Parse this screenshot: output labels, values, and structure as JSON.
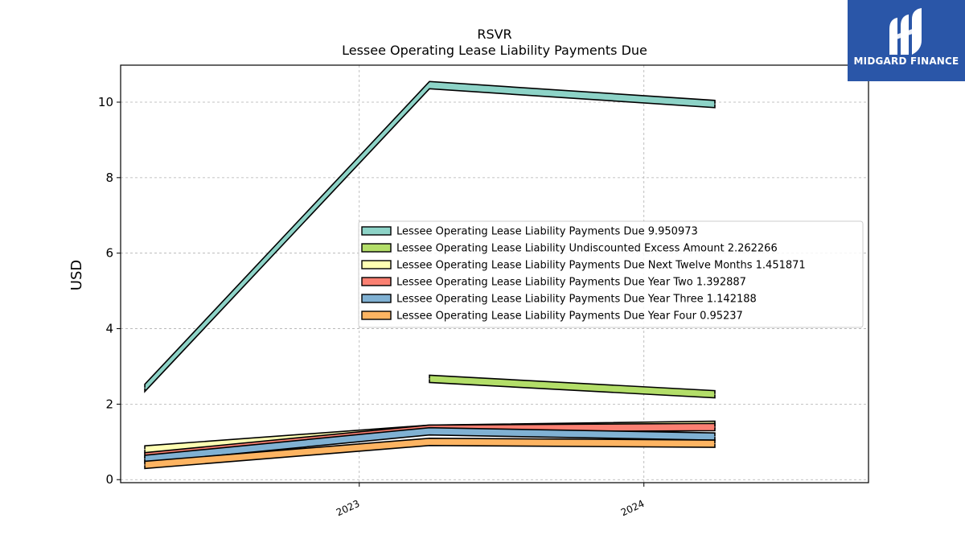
{
  "brand": {
    "name": "MIDGARD FINANCE",
    "bg_color": "#2a56a8",
    "icon": "midgard-logo-icon"
  },
  "chart_data": {
    "type": "area",
    "title": "RSVR",
    "subtitle": "Lessee Operating Lease Liability Payments Due",
    "xlabel": "",
    "ylabel": "USD",
    "ylim": [
      -0.08,
      10.98
    ],
    "yticks": [
      0,
      2,
      4,
      6,
      8,
      10
    ],
    "xlim": [
      "2022-03-01",
      "2024-10-15"
    ],
    "xticks": [
      "2023",
      "2024"
    ],
    "grid": true,
    "legend_position": "center-right",
    "series": [
      {
        "name": "Lessee Operating Lease Liability Payments Due",
        "legend_label": "Lessee Operating Lease Liability Payments Due  9.950973",
        "color": "#8dd3c7",
        "points": [
          [
            "2022-04-01",
            2.43
          ],
          [
            "2023-04-01",
            10.45
          ],
          [
            "2024-04-01",
            9.950973
          ]
        ]
      },
      {
        "name": "Lessee Operating Lease Liability Undiscounted Excess Amount",
        "legend_label": "Lessee Operating Lease Liability Undiscounted Excess Amount  2.262266",
        "color": "#b3de69",
        "points": [
          [
            "2023-04-01",
            2.67
          ],
          [
            "2024-04-01",
            2.262266
          ]
        ]
      },
      {
        "name": "Lessee Operating Lease Liability Payments Due Next Twelve Months",
        "legend_label": "Lessee Operating Lease Liability Payments Due Next Twelve Months  1.451871",
        "color": "#ffffb3",
        "points": [
          [
            "2022-04-01",
            0.8
          ],
          [
            "2023-04-01",
            1.35
          ],
          [
            "2024-04-01",
            1.451871
          ]
        ]
      },
      {
        "name": "Lessee Operating Lease Liability Payments Due Year Two",
        "legend_label": "Lessee Operating Lease Liability Payments Due Year Two  1.392887",
        "color": "#fb8072",
        "points": [
          [
            "2022-04-01",
            0.62
          ],
          [
            "2023-04-01",
            1.35
          ],
          [
            "2024-04-01",
            1.392887
          ]
        ]
      },
      {
        "name": "Lessee Operating Lease Liability Payments Due Year Three",
        "legend_label": "Lessee Operating Lease Liability Payments Due Year Three  1.142188",
        "color": "#80b1d3",
        "points": [
          [
            "2022-04-01",
            0.55
          ],
          [
            "2023-04-01",
            1.28
          ],
          [
            "2024-04-01",
            1.142188
          ]
        ]
      },
      {
        "name": "Lessee Operating Lease Liability Payments Due Year Four",
        "legend_label": "Lessee Operating Lease Liability Payments Due Year Four  0.95237",
        "color": "#fdb462",
        "points": [
          [
            "2022-04-01",
            0.39
          ],
          [
            "2023-04-01",
            1.0
          ],
          [
            "2024-04-01",
            0.95237
          ]
        ]
      }
    ]
  }
}
